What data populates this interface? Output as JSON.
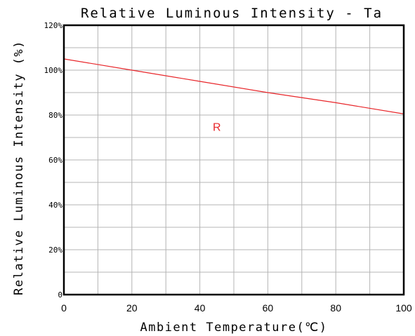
{
  "chart_data": {
    "type": "line",
    "title": "Relative Luminous Intensity - Ta",
    "xlabel": "Ambient Temperature(℃)",
    "ylabel": "Relative Luminous Intensity (%)",
    "xlim": [
      0,
      100
    ],
    "ylim": [
      0,
      120
    ],
    "x_ticks": [
      0,
      20,
      40,
      60,
      80,
      100
    ],
    "x_tick_labels": [
      "0",
      "20",
      "40",
      "60",
      "80",
      "100"
    ],
    "y_ticks": [
      0,
      20,
      40,
      60,
      80,
      100,
      120
    ],
    "y_tick_labels": [
      "0",
      "20%",
      "40%",
      "60%",
      "80%",
      "100%",
      "120%"
    ],
    "grid": true,
    "grid_x_step": 10,
    "grid_y_step": 10,
    "series": [
      {
        "name": "R",
        "color": "#e8262a",
        "x": [
          0,
          20,
          40,
          60,
          80,
          100
        ],
        "y": [
          105,
          100,
          95,
          90,
          85.5,
          80.5
        ]
      }
    ],
    "annotations": [
      {
        "text": "R",
        "x": 45,
        "y": 73,
        "color": "#e8262a"
      }
    ]
  }
}
